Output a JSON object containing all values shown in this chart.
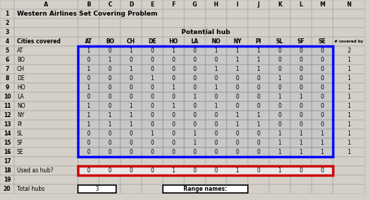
{
  "title": "Western Airlines Set Covering Problem",
  "col_headers": [
    "A",
    "B",
    "C",
    "D",
    "E",
    "F",
    "G",
    "H",
    "I",
    "J",
    "K",
    "L",
    "M",
    "N"
  ],
  "row_numbers": [
    "1",
    "2",
    "3",
    "4",
    "5",
    "6",
    "7",
    "8",
    "9",
    "10",
    "11",
    "12",
    "13",
    "14",
    "15",
    "16",
    "17",
    "18",
    "19",
    "20"
  ],
  "hub_labels": [
    "AT",
    "BO",
    "CH",
    "DE",
    "HO",
    "LA",
    "NO",
    "NY",
    "PI",
    "SL",
    "SF",
    "SE"
  ],
  "city_labels": [
    "AT",
    "BO",
    "CH",
    "DE",
    "HO",
    "LA",
    "NO",
    "NY",
    "PI",
    "SL",
    "SF",
    "SE"
  ],
  "matrix": [
    [
      1,
      0,
      1,
      0,
      1,
      0,
      1,
      1,
      1,
      0,
      0,
      0
    ],
    [
      0,
      1,
      0,
      0,
      0,
      0,
      0,
      1,
      1,
      0,
      0,
      0
    ],
    [
      1,
      0,
      1,
      0,
      0,
      0,
      1,
      1,
      1,
      0,
      0,
      0
    ],
    [
      0,
      0,
      0,
      1,
      0,
      0,
      0,
      0,
      0,
      1,
      0,
      0
    ],
    [
      1,
      0,
      0,
      0,
      1,
      0,
      1,
      0,
      0,
      0,
      0,
      0
    ],
    [
      0,
      0,
      0,
      0,
      0,
      1,
      0,
      0,
      0,
      1,
      1,
      0
    ],
    [
      1,
      0,
      1,
      0,
      1,
      0,
      1,
      0,
      0,
      0,
      0,
      0
    ],
    [
      1,
      1,
      1,
      0,
      0,
      0,
      0,
      1,
      1,
      0,
      0,
      0
    ],
    [
      1,
      1,
      1,
      0,
      0,
      0,
      0,
      1,
      1,
      0,
      0,
      0
    ],
    [
      0,
      0,
      0,
      1,
      0,
      1,
      0,
      0,
      0,
      1,
      1,
      1
    ],
    [
      0,
      0,
      0,
      0,
      0,
      1,
      0,
      0,
      0,
      1,
      1,
      1
    ],
    [
      0,
      0,
      0,
      0,
      0,
      0,
      0,
      0,
      0,
      1,
      1,
      1
    ]
  ],
  "num_covered": [
    2,
    1,
    1,
    1,
    1,
    1,
    1,
    1,
    1,
    1,
    1,
    1
  ],
  "used_as_hub": [
    0,
    0,
    0,
    0,
    1,
    0,
    0,
    1,
    0,
    1,
    0,
    0
  ],
  "total_hubs": 3,
  "sheet_bg": "#d4d0c8",
  "matrix_bg": "#c8c8c8",
  "blue_border": "#0000ff",
  "red_border": "#cc0000",
  "grid_color": "#a0a0a0",
  "font_size": 5.5,
  "title_font_size": 6.5
}
